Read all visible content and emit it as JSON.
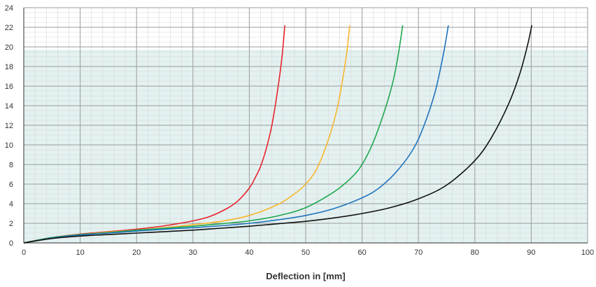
{
  "chart_data": {
    "type": "line",
    "title": "",
    "xlabel": "Deflection in [mm]",
    "ylabel": "",
    "xlim": [
      0,
      100
    ],
    "ylim": [
      0,
      24
    ],
    "x_ticks": [
      0,
      10,
      20,
      30,
      40,
      50,
      60,
      70,
      80,
      90,
      100
    ],
    "y_ticks": [
      0,
      2,
      4,
      6,
      8,
      10,
      12,
      14,
      16,
      18,
      20,
      22,
      24
    ],
    "grid": true,
    "shaded_region": {
      "y_from": 0,
      "y_to": 19.7,
      "color": "#e3f1f1"
    },
    "colors": {
      "major_grid": "#9b9b9b",
      "minor_grid": "#d7d7d7",
      "axis": "#555555"
    },
    "series": [
      {
        "color": "#e8242b",
        "points": [
          [
            0,
            0
          ],
          [
            5,
            0.55
          ],
          [
            10,
            0.9
          ],
          [
            15,
            1.15
          ],
          [
            20,
            1.4
          ],
          [
            25,
            1.75
          ],
          [
            30,
            2.25
          ],
          [
            33,
            2.7
          ],
          [
            36,
            3.5
          ],
          [
            38,
            4.3
          ],
          [
            40,
            5.6
          ],
          [
            41,
            6.6
          ],
          [
            42,
            7.8
          ],
          [
            43,
            9.6
          ],
          [
            44,
            12
          ],
          [
            45,
            15.5
          ],
          [
            45.8,
            19
          ],
          [
            46.3,
            22.2
          ]
        ]
      },
      {
        "color": "#f8b62b",
        "points": [
          [
            0,
            0
          ],
          [
            5,
            0.55
          ],
          [
            10,
            0.85
          ],
          [
            15,
            1.1
          ],
          [
            20,
            1.3
          ],
          [
            25,
            1.55
          ],
          [
            30,
            1.85
          ],
          [
            35,
            2.2
          ],
          [
            40,
            2.8
          ],
          [
            45,
            3.9
          ],
          [
            48,
            5.0
          ],
          [
            50,
            6.0
          ],
          [
            52,
            7.6
          ],
          [
            54,
            10.5
          ],
          [
            55.5,
            13.5
          ],
          [
            56.5,
            16.5
          ],
          [
            57.3,
            19.5
          ],
          [
            57.8,
            22.2
          ]
        ]
      },
      {
        "color": "#1fa74f",
        "points": [
          [
            0,
            0
          ],
          [
            5,
            0.55
          ],
          [
            10,
            0.85
          ],
          [
            15,
            1.05
          ],
          [
            20,
            1.3
          ],
          [
            25,
            1.5
          ],
          [
            30,
            1.7
          ],
          [
            35,
            1.95
          ],
          [
            40,
            2.25
          ],
          [
            45,
            2.75
          ],
          [
            50,
            3.6
          ],
          [
            55,
            5.2
          ],
          [
            58,
            6.6
          ],
          [
            60,
            8.0
          ],
          [
            62,
            10.3
          ],
          [
            64,
            13.5
          ],
          [
            65.5,
            16.5
          ],
          [
            66.5,
            19.5
          ],
          [
            67.2,
            22.2
          ]
        ]
      },
      {
        "color": "#1f74bd",
        "points": [
          [
            0,
            0
          ],
          [
            5,
            0.5
          ],
          [
            10,
            0.8
          ],
          [
            15,
            1.0
          ],
          [
            20,
            1.2
          ],
          [
            25,
            1.4
          ],
          [
            30,
            1.55
          ],
          [
            35,
            1.75
          ],
          [
            40,
            2.0
          ],
          [
            45,
            2.35
          ],
          [
            50,
            2.8
          ],
          [
            55,
            3.5
          ],
          [
            60,
            4.6
          ],
          [
            63,
            5.6
          ],
          [
            66,
            7.2
          ],
          [
            69,
            9.5
          ],
          [
            71,
            12
          ],
          [
            73,
            15.5
          ],
          [
            74.5,
            19.5
          ],
          [
            75.3,
            22.2
          ]
        ]
      },
      {
        "color": "#111111",
        "points": [
          [
            0,
            0
          ],
          [
            5,
            0.45
          ],
          [
            10,
            0.7
          ],
          [
            15,
            0.85
          ],
          [
            20,
            1.0
          ],
          [
            25,
            1.15
          ],
          [
            30,
            1.3
          ],
          [
            35,
            1.5
          ],
          [
            40,
            1.7
          ],
          [
            45,
            1.95
          ],
          [
            50,
            2.2
          ],
          [
            55,
            2.55
          ],
          [
            60,
            3.0
          ],
          [
            65,
            3.6
          ],
          [
            70,
            4.5
          ],
          [
            75,
            5.9
          ],
          [
            80,
            8.4
          ],
          [
            83,
            10.8
          ],
          [
            86,
            14.2
          ],
          [
            88,
            17.3
          ],
          [
            89.4,
            20.3
          ],
          [
            90.1,
            22.2
          ]
        ]
      }
    ]
  }
}
